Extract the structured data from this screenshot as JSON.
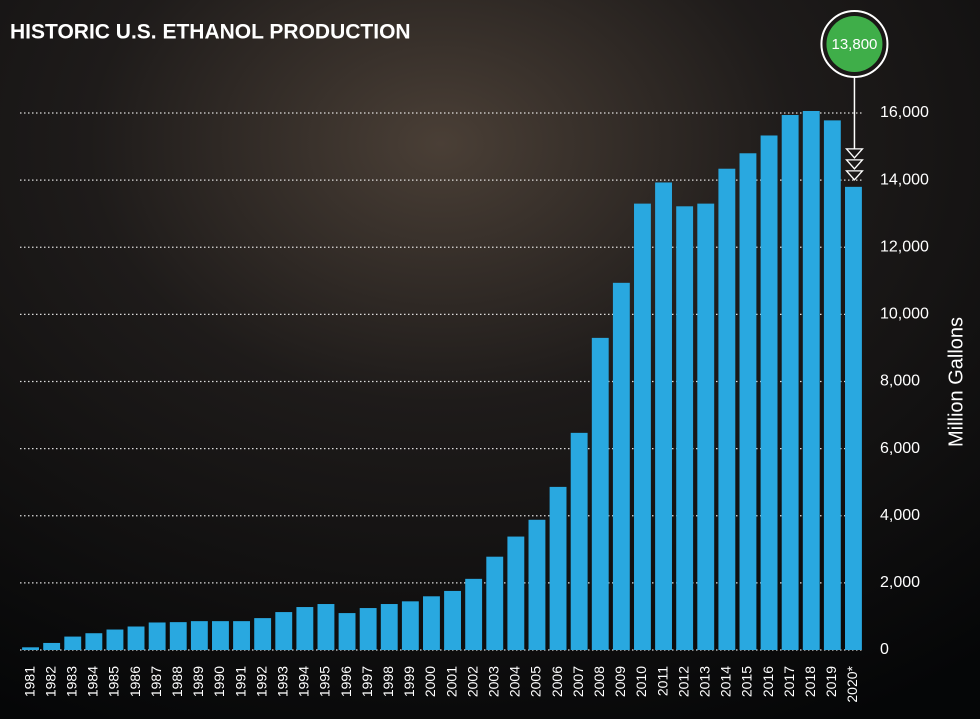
{
  "chart_data": {
    "type": "bar",
    "title": "HISTORIC U.S. ETHANOL PRODUCTION",
    "y_label": "Million Gallons",
    "categories": [
      "1981",
      "1982",
      "1983",
      "1984",
      "1985",
      "1986",
      "1987",
      "1988",
      "1989",
      "1990",
      "1991",
      "1992",
      "1993",
      "1994",
      "1995",
      "1996",
      "1997",
      "1998",
      "1999",
      "2000",
      "2001",
      "2002",
      "2003",
      "2004",
      "2005",
      "2006",
      "2007",
      "2008",
      "2009",
      "2010",
      "2011",
      "2012",
      "2013",
      "2014",
      "2015",
      "2016",
      "2017",
      "2018",
      "2019",
      "2020*"
    ],
    "values": [
      80,
      210,
      400,
      500,
      610,
      700,
      820,
      830,
      860,
      860,
      860,
      950,
      1130,
      1280,
      1370,
      1100,
      1250,
      1370,
      1450,
      1600,
      1760,
      2120,
      2780,
      3380,
      3880,
      4860,
      6470,
      9300,
      10940,
      13300,
      13930,
      13220,
      13300,
      14340,
      14800,
      15330,
      15940,
      16060,
      15780,
      13800
    ],
    "value_labels": [
      null,
      null,
      null,
      null,
      null,
      null,
      null,
      null,
      null,
      null,
      null,
      null,
      null,
      null,
      null,
      null,
      null,
      null,
      null,
      null,
      null,
      null,
      null,
      null,
      null,
      null,
      null,
      null,
      null,
      null,
      null,
      null,
      null,
      null,
      null,
      null,
      null,
      null,
      null,
      "13,800"
    ],
    "color": "#29a8e0",
    "label_color": "#3fae49",
    "ylim": [
      0,
      16000
    ],
    "yticks": [
      0,
      {
        "value": 2000,
        "label": "2,000"
      },
      {
        "value": 4000,
        "label": "4,000"
      },
      {
        "value": 6000,
        "label": "6,000"
      },
      {
        "value": 8000,
        "label": "8,000"
      },
      {
        "value": 10000,
        "label": "10,000"
      },
      {
        "value": 12000,
        "label": "12,000"
      },
      {
        "value": 14000,
        "label": "14,000"
      },
      {
        "value": 16000,
        "label": "16,000"
      }
    ],
    "grid": true
  }
}
